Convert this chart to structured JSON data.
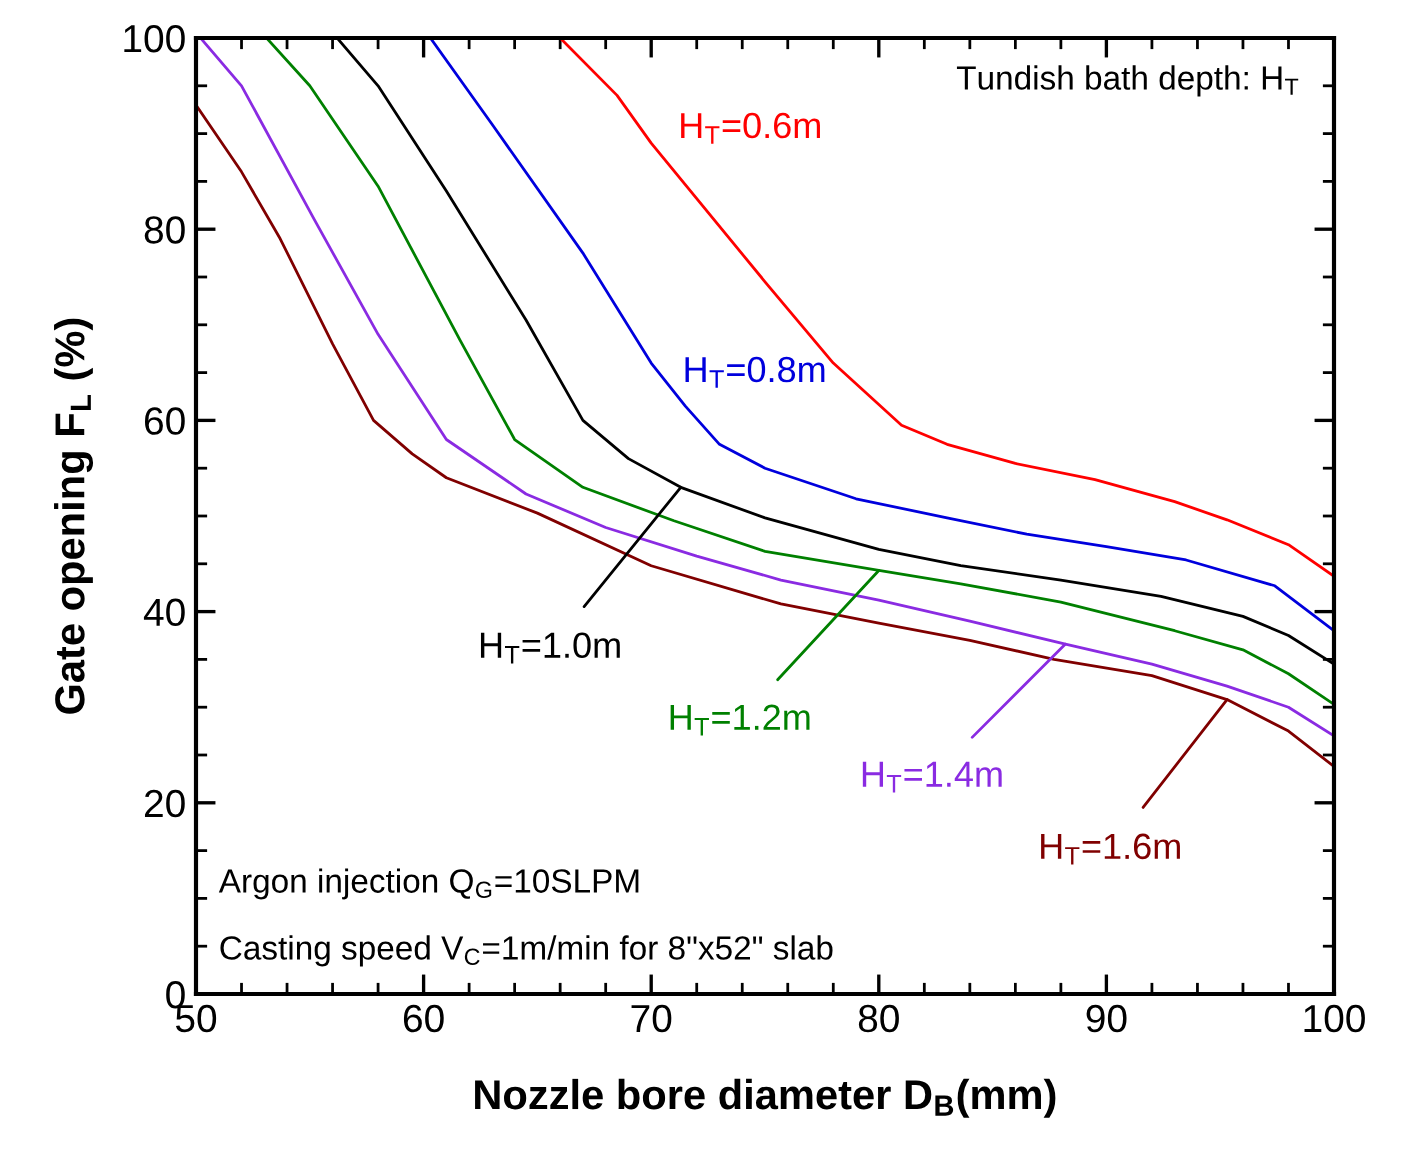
{
  "chart_data": {
    "type": "line",
    "xlabel": "Nozzle bore diameter D$_{B}$(mm)",
    "ylabel": "Gate opening F$_{L}$ (%)",
    "xlim": [
      50,
      100
    ],
    "ylim": [
      0,
      100
    ],
    "xticks": [
      50,
      60,
      70,
      80,
      90,
      100
    ],
    "yticks": [
      0,
      20,
      40,
      60,
      80,
      100
    ],
    "grid": false,
    "legend": false,
    "marker": "none",
    "line_style": "solid",
    "series": [
      {
        "name": "H$_{T}$=0.6m",
        "color": "#ff0000",
        "x": [
          66,
          68.5,
          70,
          75,
          78,
          81,
          83,
          86,
          89.5,
          93,
          95.3,
          98,
          100
        ],
        "values": [
          100,
          94,
          89,
          74.5,
          66,
          59.5,
          57.5,
          55.5,
          53.8,
          51.5,
          49.6,
          47,
          43.7
        ]
      },
      {
        "name": "H$_{T}$=0.8m",
        "color": "#0000dd",
        "x": [
          60.3,
          63,
          67,
          70,
          71.5,
          73,
          75,
          79,
          83,
          86.5,
          90,
          93.5,
          97.4,
          100
        ],
        "values": [
          100,
          91,
          77.5,
          66,
          61.5,
          57.5,
          55,
          51.8,
          49.8,
          48.1,
          46.8,
          45.4,
          42.7,
          38
        ]
      },
      {
        "name": "H$_{T}$=1.0m",
        "color": "#000000",
        "x": [
          56.2,
          58,
          61,
          64.5,
          67,
          69,
          71.3,
          75,
          80,
          83.6,
          88,
          92.4,
          96,
          98,
          100
        ],
        "values": [
          100,
          95,
          84,
          70.5,
          60,
          56,
          53,
          49.8,
          46.5,
          44.8,
          43.3,
          41.6,
          39.5,
          37.5,
          34.5
        ]
      },
      {
        "name": "H$_{T}$=1.2m",
        "color": "#008000",
        "x": [
          53.1,
          55,
          58,
          61.6,
          64,
          67,
          71,
          75,
          80,
          83.6,
          88,
          93,
          96,
          98,
          100
        ],
        "values": [
          100,
          95,
          84.5,
          68.4,
          58,
          53,
          49.5,
          46.3,
          44.3,
          42.9,
          41,
          38,
          36,
          33.5,
          30.3
        ]
      },
      {
        "name": "H$_{T}$=1.4m",
        "color": "#8a2be2",
        "x": [
          50.2,
          52,
          55.2,
          58,
          61,
          64.5,
          68,
          72,
          75.7,
          80,
          84,
          88.2,
          92,
          95.3,
          98,
          100
        ],
        "values": [
          100,
          95,
          81,
          69,
          58,
          52.3,
          48.8,
          45.8,
          43.3,
          41.2,
          39,
          36.6,
          34.5,
          32.2,
          30,
          27
        ]
      },
      {
        "name": "H$_{T}$=1.6m",
        "color": "#800000",
        "x": [
          50,
          52,
          53.7,
          56,
          57.8,
          59.5,
          61,
          65,
          70,
          75.7,
          80,
          84,
          87.7,
          92,
          95.3,
          98,
          100
        ],
        "values": [
          93,
          86,
          79,
          68,
          60,
          56.5,
          54,
          50.3,
          44.8,
          40.8,
          38.8,
          37,
          35,
          33.3,
          30.8,
          27.5,
          23.8
        ]
      }
    ],
    "annotations": [
      "Tundish bath depth: H$_{T}$",
      "Argon injection Q$_{G}$=10SLPM",
      "Casting speed V$_{C}$=1m/min for 8\"x52\" slab"
    ]
  }
}
